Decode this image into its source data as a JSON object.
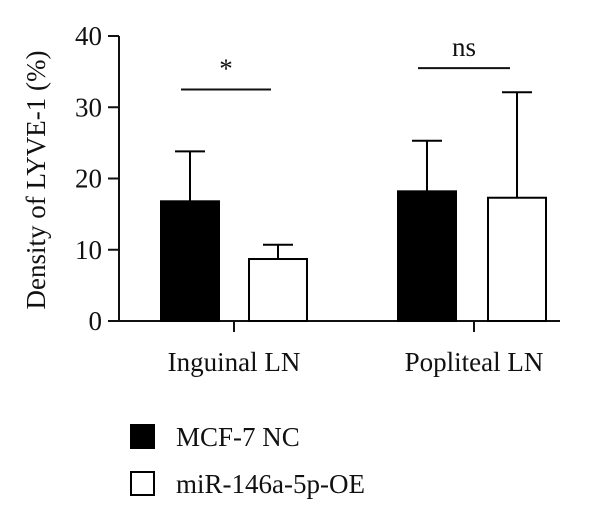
{
  "chart_data": {
    "type": "bar",
    "title": "",
    "xlabel": "",
    "ylabel": "Density of LYVE-1 (%)",
    "ylim": [
      0,
      40
    ],
    "yticks": [
      "0",
      "10",
      "20",
      "30",
      "40"
    ],
    "categories": [
      "Inguinal LN",
      "Popliteal LN"
    ],
    "series": [
      {
        "name": "MCF-7 NC",
        "values": [
          16.8,
          18.2
        ],
        "errors": [
          7.0,
          7.1
        ],
        "fill": "#000000"
      },
      {
        "name": "miR-146a-5p-OE",
        "values": [
          8.7,
          17.3
        ],
        "errors": [
          2.0,
          14.8
        ],
        "fill": "#ffffff"
      }
    ],
    "significance": [
      {
        "category": "Inguinal LN",
        "label": "*",
        "y": 32.5
      },
      {
        "category": "Popliteal LN",
        "label": "ns",
        "y": 35.5
      }
    ],
    "grid": false,
    "legend_position": "bottom-left",
    "colors": {
      "axis": "#111111",
      "bar_outline": "#000000"
    }
  }
}
